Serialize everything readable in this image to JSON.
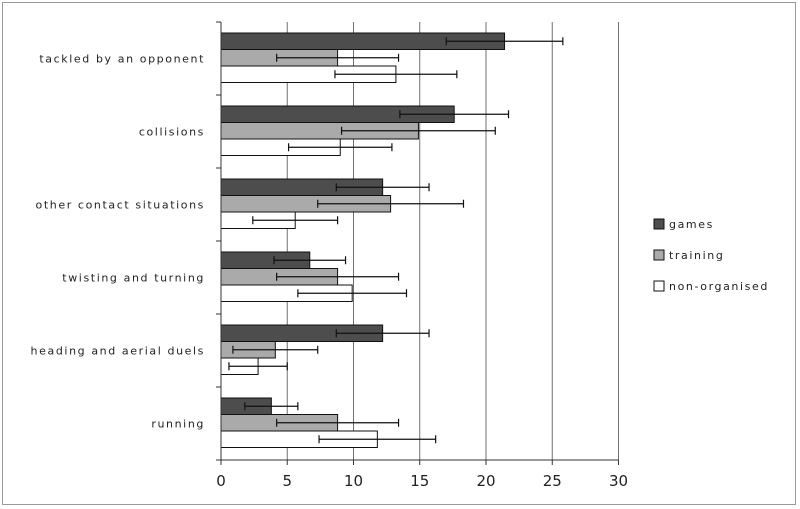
{
  "chart_data": {
    "type": "bar",
    "orientation": "horizontal",
    "categories": [
      "tackled by an opponent",
      "collisions",
      "other contact situations",
      "twisting and turning",
      "heading and aerial duels",
      "running"
    ],
    "series": [
      {
        "name": "games",
        "color": "#4d4d4d",
        "values": [
          21.4,
          17.6,
          12.2,
          6.7,
          12.2,
          3.8
        ],
        "errors": [
          4.4,
          4.1,
          3.5,
          2.7,
          3.5,
          2.0
        ]
      },
      {
        "name": "training",
        "color": "#aaaaaa",
        "values": [
          8.8,
          14.9,
          12.8,
          8.8,
          4.1,
          8.8
        ],
        "errors": [
          4.6,
          5.8,
          5.5,
          4.6,
          3.2,
          4.6
        ]
      },
      {
        "name": "non-organised",
        "color": "#ffffff",
        "values": [
          13.2,
          9.0,
          5.6,
          9.9,
          2.8,
          11.8
        ],
        "errors": [
          4.6,
          3.9,
          3.2,
          4.1,
          2.2,
          4.4
        ]
      }
    ],
    "xlim": [
      0,
      30
    ],
    "xticks": [
      0,
      5,
      10,
      15,
      20,
      25,
      30
    ],
    "grid": "vertical",
    "legend": "right",
    "title": "",
    "xlabel": "",
    "ylabel": ""
  }
}
